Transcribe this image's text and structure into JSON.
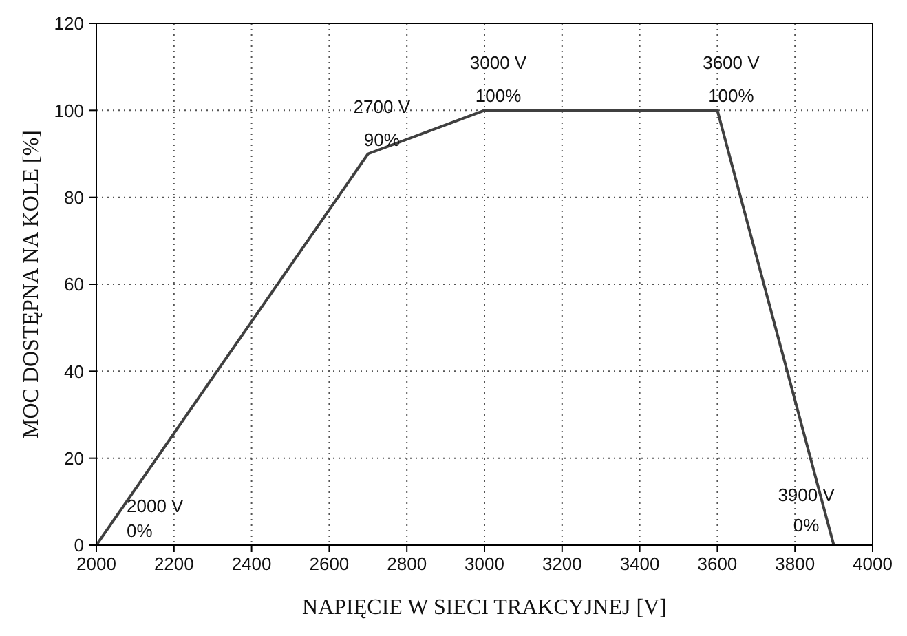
{
  "chart_data": {
    "type": "line",
    "xlabel": "NAPIĘCIE W SIECI TRAKCYJNEJ [V]",
    "ylabel": "MOC DOSTĘPNA NA KOLE [%]",
    "x": [
      2000,
      2700,
      3000,
      3600,
      3900
    ],
    "series": [
      {
        "color": "#404040",
        "values": [
          0,
          90,
          100,
          100,
          0
        ]
      }
    ],
    "xlim": [
      2000,
      4000
    ],
    "xticks": [
      2000,
      2200,
      2400,
      2600,
      2800,
      3000,
      3200,
      3400,
      3600,
      3800,
      4000
    ],
    "ylim": [
      0,
      120
    ],
    "yticks": [
      0,
      20,
      40,
      60,
      80,
      100,
      120
    ],
    "grid": true,
    "marker": "none",
    "line_style": "solid",
    "annotations": [
      {
        "text": "2000 V",
        "x": 2000,
        "y": 0
      },
      {
        "text": "0%",
        "x": 2000,
        "y": 0
      },
      {
        "text": "2700 V",
        "x": 2700,
        "y": 90
      },
      {
        "text": "90%",
        "x": 2700,
        "y": 90
      },
      {
        "text": "3000 V",
        "x": 3000,
        "y": 100
      },
      {
        "text": "100%",
        "x": 3000,
        "y": 100
      },
      {
        "text": "3600 V",
        "x": 3600,
        "y": 100
      },
      {
        "text": "100%",
        "x": 3600,
        "y": 100
      },
      {
        "text": "3900 V",
        "x": 3900,
        "y": 0
      },
      {
        "text": "0%",
        "x": 3900,
        "y": 0
      }
    ]
  }
}
